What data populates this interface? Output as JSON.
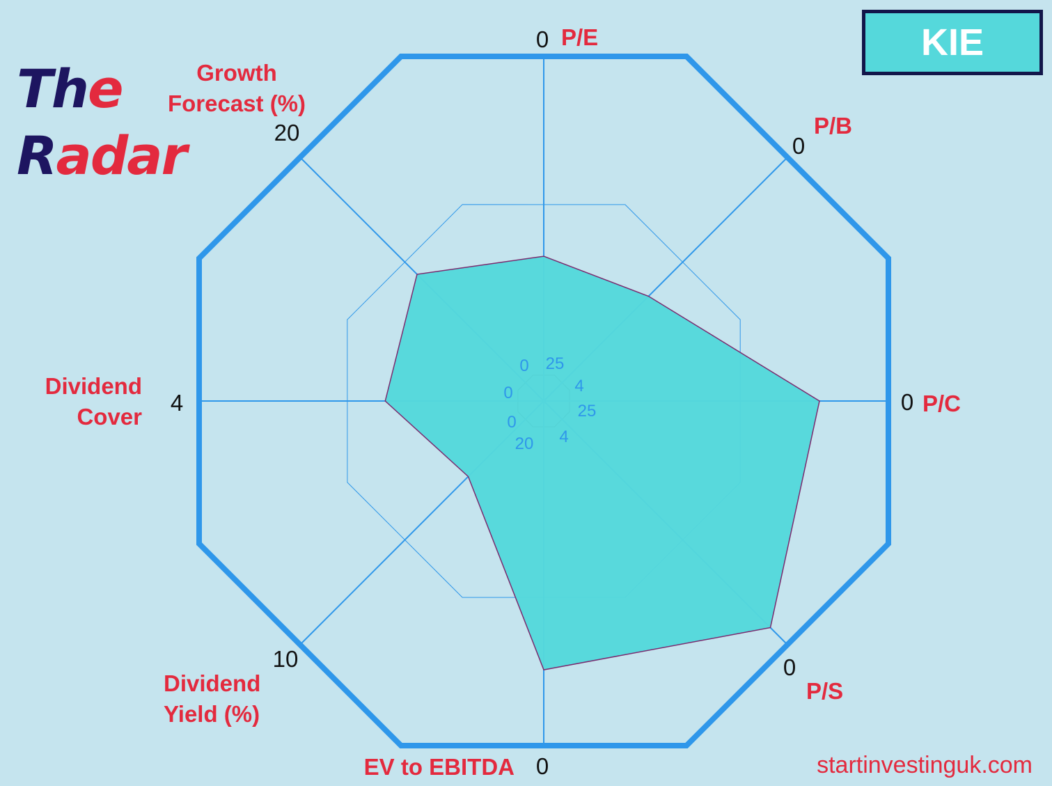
{
  "title": {
    "word1_first": "Th",
    "word1_rest": "e",
    "word2_first": "R",
    "word2_rest": "adar"
  },
  "ticker": "KIE",
  "website": "startinvestinguk.com",
  "colors": {
    "background": "#c5e4ee",
    "axis": "#2f97ea",
    "fill": "#55d8db",
    "polygon_edge": "#7a2a6e",
    "label": "#e32a3e",
    "title_dark": "#1d1560",
    "ticker_border": "#12164a"
  },
  "chart_data": {
    "type": "radar",
    "axes": [
      {
        "label": "P/E",
        "outer_tick": "0",
        "inner_tick": "25",
        "value": 0.42
      },
      {
        "label": "P/B",
        "outer_tick": "0",
        "inner_tick": "4",
        "value": 0.43
      },
      {
        "label": "P/C",
        "outer_tick": "0",
        "inner_tick": "25",
        "value": 0.8
      },
      {
        "label": "P/S",
        "outer_tick": "0",
        "inner_tick": "4",
        "value": 0.93
      },
      {
        "label": "EV to EBITDA",
        "outer_tick": "0",
        "inner_tick": "20",
        "value": 0.78
      },
      {
        "label": "Dividend Yield (%)",
        "outer_tick": "10",
        "inner_tick": "0",
        "value": 0.31
      },
      {
        "label": "Dividend Cover",
        "outer_tick": "4",
        "inner_tick": "0",
        "value": 0.46
      },
      {
        "label": "Growth Forecast (%)",
        "outer_tick": "20",
        "inner_tick": "0",
        "value": 0.52
      }
    ]
  }
}
